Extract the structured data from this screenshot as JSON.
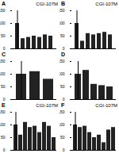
{
  "chart_data": [
    {
      "type": "bar",
      "title": "A",
      "subtitle": "CGI-107M",
      "categories": [
        null,
        null,
        null,
        null,
        null,
        null,
        null
      ],
      "values": [
        100,
        40,
        45,
        50,
        45,
        55,
        50
      ],
      "color": "#222222",
      "ylim": [
        0,
        150
      ],
      "yticks": [
        0,
        50,
        100,
        150
      ],
      "tick_labels": "y"
    },
    {
      "type": "bar",
      "title": "B",
      "subtitle": "CGI-107M",
      "categories": [
        null,
        null,
        null,
        null,
        null,
        null,
        null
      ],
      "values": [
        100,
        30,
        60,
        55,
        60,
        65,
        55
      ],
      "color": "#222222",
      "ylim": [
        0,
        150
      ],
      "yticks": [
        0,
        50,
        100,
        150
      ],
      "tick_labels": "y"
    },
    {
      "type": "bar",
      "title": "C",
      "categories": [
        null,
        null,
        null
      ],
      "values": [
        100,
        110,
        80
      ],
      "color": "#222222",
      "ylim": [
        0,
        150
      ],
      "yticks": [
        0,
        50,
        100,
        150
      ],
      "tick_labels": "y"
    },
    {
      "type": "bar",
      "title": "D",
      "categories": [
        null,
        null,
        null,
        null,
        null
      ],
      "values": [
        100,
        115,
        60,
        55,
        50
      ],
      "color": "#222222",
      "ylim": [
        0,
        150
      ],
      "yticks": [
        0,
        50,
        100,
        150
      ],
      "tick_labels": "y"
    },
    {
      "type": "bar",
      "title": "E",
      "subtitle": "CGI-107M",
      "categories": [
        null,
        null,
        null,
        null,
        null,
        null,
        null,
        null,
        null
      ],
      "values": [
        100,
        60,
        110,
        90,
        95,
        70,
        110,
        95,
        50
      ],
      "color": "#222222",
      "ylim": [
        0,
        150
      ],
      "yticks": [
        0,
        50,
        100,
        150
      ],
      "tick_labels": "y"
    },
    {
      "type": "bar",
      "title": "F",
      "subtitle": "CGI-107M",
      "categories": [
        null,
        null,
        null,
        null,
        null,
        null,
        null,
        null,
        null
      ],
      "values": [
        100,
        90,
        95,
        70,
        50,
        60,
        30,
        80,
        90
      ],
      "color": "#222222",
      "ylim": [
        0,
        150
      ],
      "yticks": [
        0,
        50,
        100,
        150
      ],
      "tick_labels": "y"
    }
  ]
}
